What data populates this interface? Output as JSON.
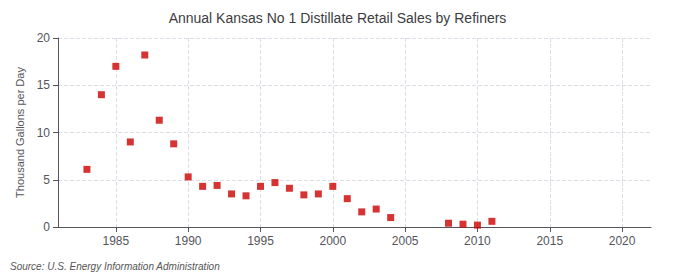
{
  "chart_data": {
    "type": "scatter",
    "title": "Annual Kansas No 1 Distillate Retail Sales by Refiners",
    "ylabel": "Thousand Gallons per Day",
    "annotations": [
      "Source: U.S. Energy Information Administration"
    ],
    "x": [
      1983,
      1984,
      1985,
      1986,
      1987,
      1988,
      1989,
      1990,
      1991,
      1992,
      1993,
      1994,
      1995,
      1996,
      1997,
      1998,
      1999,
      2000,
      2001,
      2002,
      2003,
      2004,
      2008,
      2009,
      2010,
      2011
    ],
    "values": [
      6.1,
      14.0,
      17.0,
      9.0,
      18.2,
      11.3,
      8.8,
      5.3,
      4.3,
      4.4,
      3.5,
      3.3,
      4.3,
      4.7,
      4.1,
      3.4,
      3.5,
      4.3,
      3.0,
      1.6,
      1.9,
      1.0,
      0.4,
      0.3,
      0.2,
      0.6
    ],
    "color": "#cc0000",
    "marker": "square",
    "xlim": [
      1981,
      2022
    ],
    "xticks": [
      1985,
      1990,
      1995,
      2000,
      2005,
      2010,
      2015,
      2020
    ],
    "ylim": [
      0,
      20
    ],
    "yticks": [
      0,
      5,
      10,
      15,
      20
    ],
    "grid": true
  }
}
